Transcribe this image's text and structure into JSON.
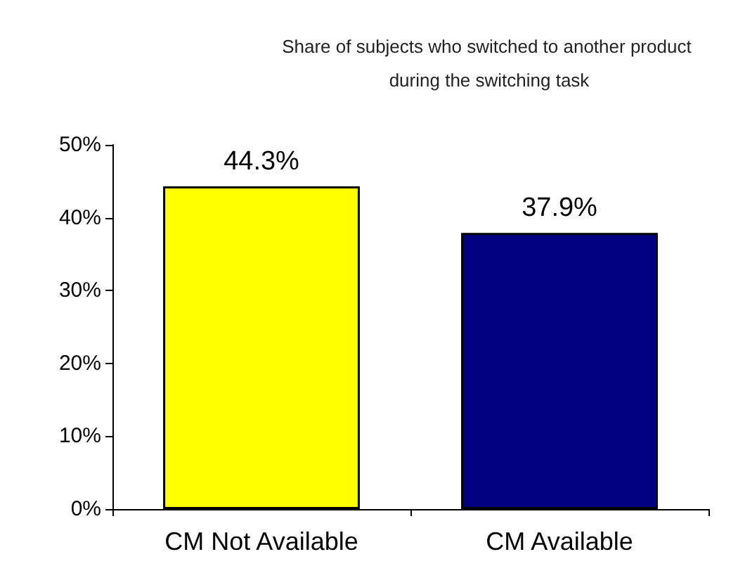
{
  "chart_data": {
    "type": "bar",
    "title": "Share of subjects who switched to another product during the switching task",
    "categories": [
      "CM Not Available",
      "CM Available"
    ],
    "series": [
      {
        "colors": [
          "#ffff00",
          "#000080"
        ],
        "values": [
          44.3,
          37.9
        ],
        "value_labels": [
          "44.3%",
          "37.9%"
        ]
      }
    ],
    "ylim": [
      0,
      50
    ],
    "yticks": [
      {
        "value": 0,
        "label": "0%"
      },
      {
        "value": 10,
        "label": "10%"
      },
      {
        "value": 20,
        "label": "20%"
      },
      {
        "value": 30,
        "label": "30%"
      },
      {
        "value": 40,
        "label": "40%"
      },
      {
        "value": 50,
        "label": "50%"
      }
    ],
    "grid": false
  }
}
